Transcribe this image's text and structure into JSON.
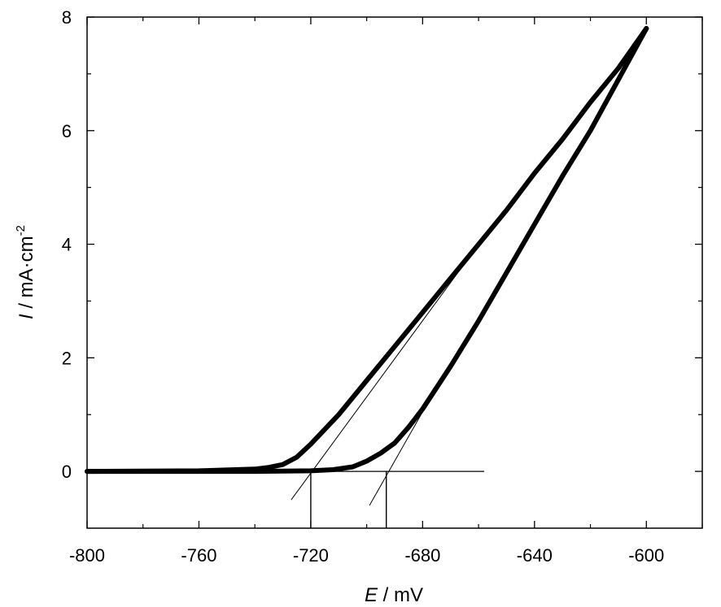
{
  "chart_data": {
    "type": "line",
    "xlabel": {
      "italic": "E",
      "rest": " / mV"
    },
    "ylabel": {
      "italic": "I",
      "rest": " / mA·cm",
      "sup": "-2"
    },
    "xlim": [
      -800,
      -580
    ],
    "ylim": [
      -1,
      8
    ],
    "x_ticks": [
      -800,
      -760,
      -720,
      -680,
      -640,
      -600
    ],
    "x_tick_labels": [
      "-800",
      "-760",
      "-720",
      "-680",
      "-640",
      "-600"
    ],
    "y_ticks": [
      0,
      2,
      4,
      6,
      8
    ],
    "y_tick_labels": [
      "0",
      "2",
      "4",
      "6",
      "8"
    ],
    "x_minor_ticks": [
      -780,
      -740,
      -700,
      -660,
      -620,
      -580
    ],
    "y_minor_ticks": [
      1,
      3,
      5,
      7
    ],
    "grid": false,
    "series": [
      {
        "role": "forward-scan",
        "color": "#000000",
        "x": [
          -800,
          -760,
          -740,
          -735,
          -730,
          -725,
          -720,
          -710,
          -700,
          -690,
          -680,
          -670,
          -660,
          -650,
          -640,
          -630,
          -620,
          -610,
          -600
        ],
        "y": [
          0.0,
          0.01,
          0.04,
          0.07,
          0.12,
          0.25,
          0.48,
          1.0,
          1.6,
          2.2,
          2.8,
          3.4,
          4.0,
          4.6,
          5.25,
          5.85,
          6.5,
          7.1,
          7.8
        ]
      },
      {
        "role": "reverse-scan",
        "color": "#000000",
        "x": [
          -800,
          -740,
          -720,
          -712,
          -705,
          -700,
          -695,
          -690,
          -685,
          -680,
          -670,
          -660,
          -650,
          -640,
          -630,
          -620,
          -610,
          -600
        ],
        "y": [
          0.0,
          0.0,
          0.01,
          0.03,
          0.08,
          0.18,
          0.32,
          0.5,
          0.78,
          1.1,
          1.85,
          2.65,
          3.5,
          4.35,
          5.2,
          6.0,
          6.9,
          7.8
        ]
      }
    ],
    "annotations": {
      "baseline": {
        "x": [
          -800,
          -658
        ],
        "y": 0
      },
      "tangents": [
        {
          "x": [
            -727,
            -651
          ],
          "y": [
            -0.5,
            4.6
          ]
        },
        {
          "x": [
            -699,
            -680
          ],
          "y": [
            -0.6,
            1.05
          ]
        }
      ],
      "onset_markers": [
        {
          "x": -720,
          "y_top": 0,
          "y_bottom": -1
        },
        {
          "x": -693,
          "y_top": 0,
          "y_bottom": -1
        }
      ]
    }
  }
}
